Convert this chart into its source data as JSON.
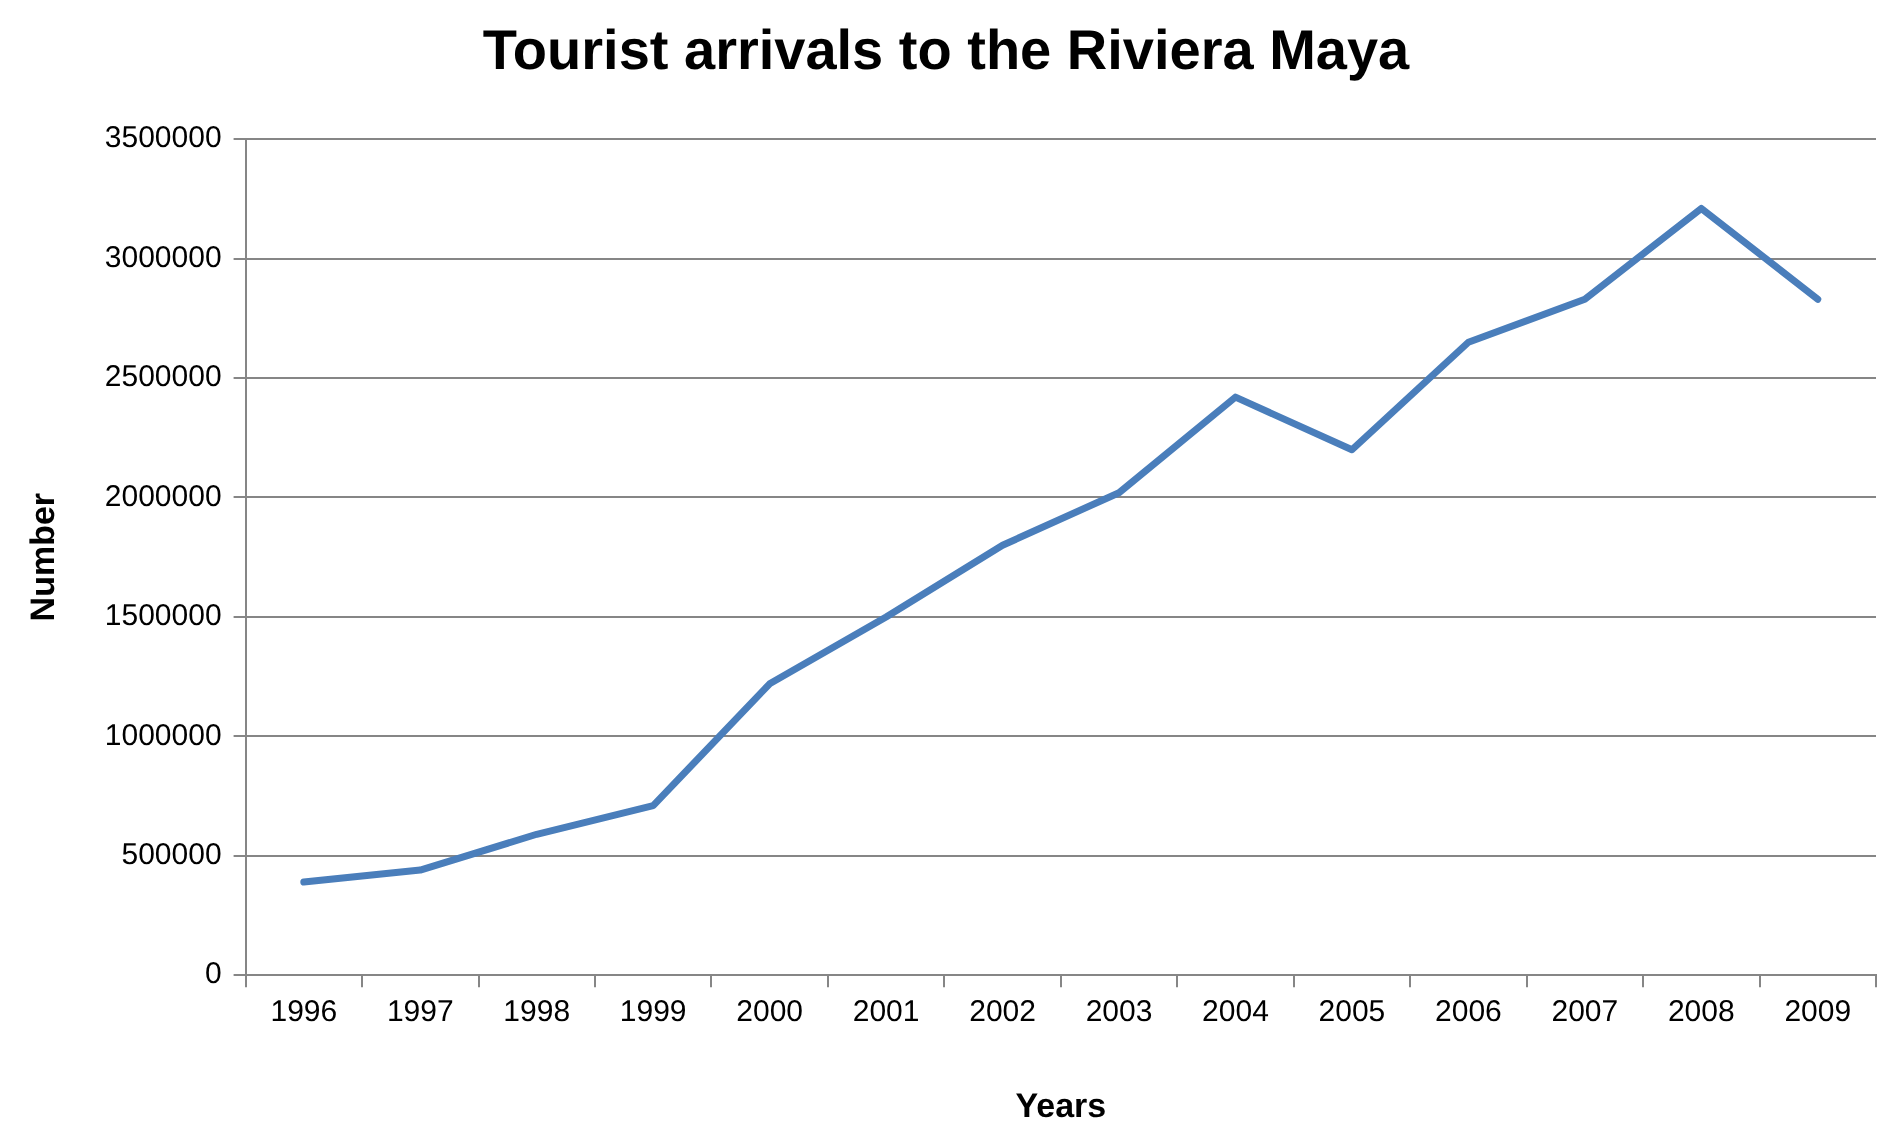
{
  "chart_data": {
    "type": "line",
    "title": "Tourist arrivals to the Riviera Maya",
    "xlabel": "Years",
    "ylabel": "Number",
    "categories": [
      "1996",
      "1997",
      "1998",
      "1999",
      "2000",
      "2001",
      "2002",
      "2003",
      "2004",
      "2005",
      "2006",
      "2007",
      "2008",
      "2009"
    ],
    "series": [
      {
        "color": "#4a7ebb",
        "values": [
          390000,
          440000,
          590000,
          710000,
          1220000,
          1500000,
          1800000,
          2020000,
          2420000,
          2200000,
          2650000,
          2830000,
          3210000,
          2830000
        ]
      }
    ],
    "ylim": [
      0,
      3500000
    ],
    "yticks": [
      0,
      500000,
      1000000,
      1500000,
      2000000,
      2500000,
      3000000,
      3500000
    ],
    "grid": "y",
    "legend": false,
    "marker": "none",
    "line_style": "solid"
  }
}
